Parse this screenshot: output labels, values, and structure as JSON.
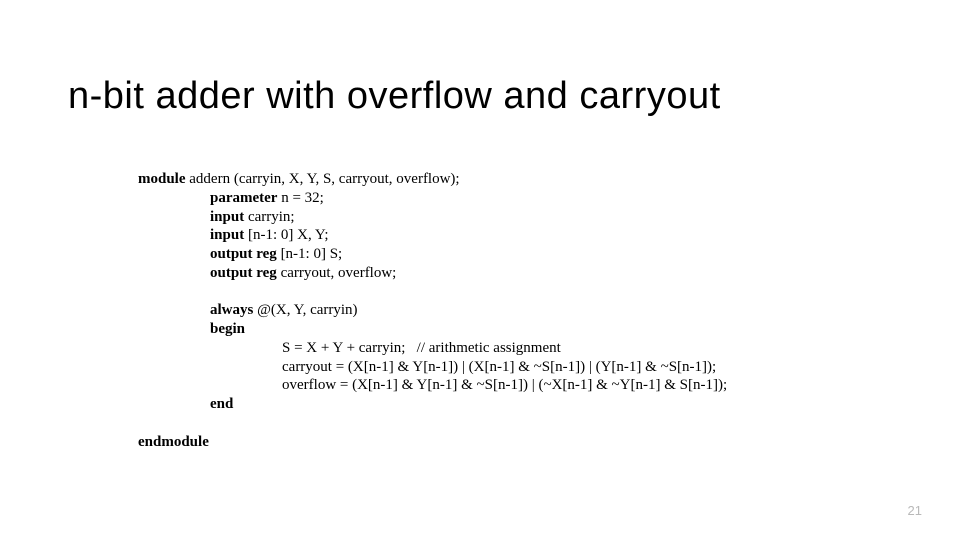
{
  "title": "n-bit adder with overflow and carryout",
  "page_number": "21",
  "colors": {
    "background": "#ffffff",
    "text": "#000000",
    "page_num": "#b9b9b9"
  },
  "typography": {
    "title_font": "Segoe UI Light",
    "title_size_pt": 28,
    "title_weight": 300,
    "code_font": "Times New Roman",
    "code_size_pt": 11,
    "keyword_weight": "bold"
  },
  "code": {
    "l1_kw": "module",
    "l1_rest": " addern (carryin, X, Y, S, carryout, overflow);",
    "l2_kw": "parameter",
    "l2_rest": " n = 32;",
    "l3_kw": "input",
    "l3_rest": " carryin;",
    "l4_kw": "input",
    "l4_rest": " [n-1: 0] X, Y;",
    "l5_kw": "output reg",
    "l5_rest": " [n-1: 0] S;",
    "l6_kw": "output reg",
    "l6_rest": " carryout, overflow;",
    "l7_kw": "always",
    "l7_rest": " @(X, Y, carryin)",
    "l8_kw": "begin",
    "l9": "S = X + Y + carryin;   // arithmetic assignment",
    "l10": "carryout = (X[n-1] & Y[n-1]) | (X[n-1] & ~S[n-1]) | (Y[n-1] & ~S[n-1]);",
    "l11": "overflow = (X[n-1] & Y[n-1] & ~S[n-1]) | (~X[n-1] & ~Y[n-1] & S[n-1]);",
    "l12_kw": "end",
    "l13_kw": "endmodule"
  }
}
